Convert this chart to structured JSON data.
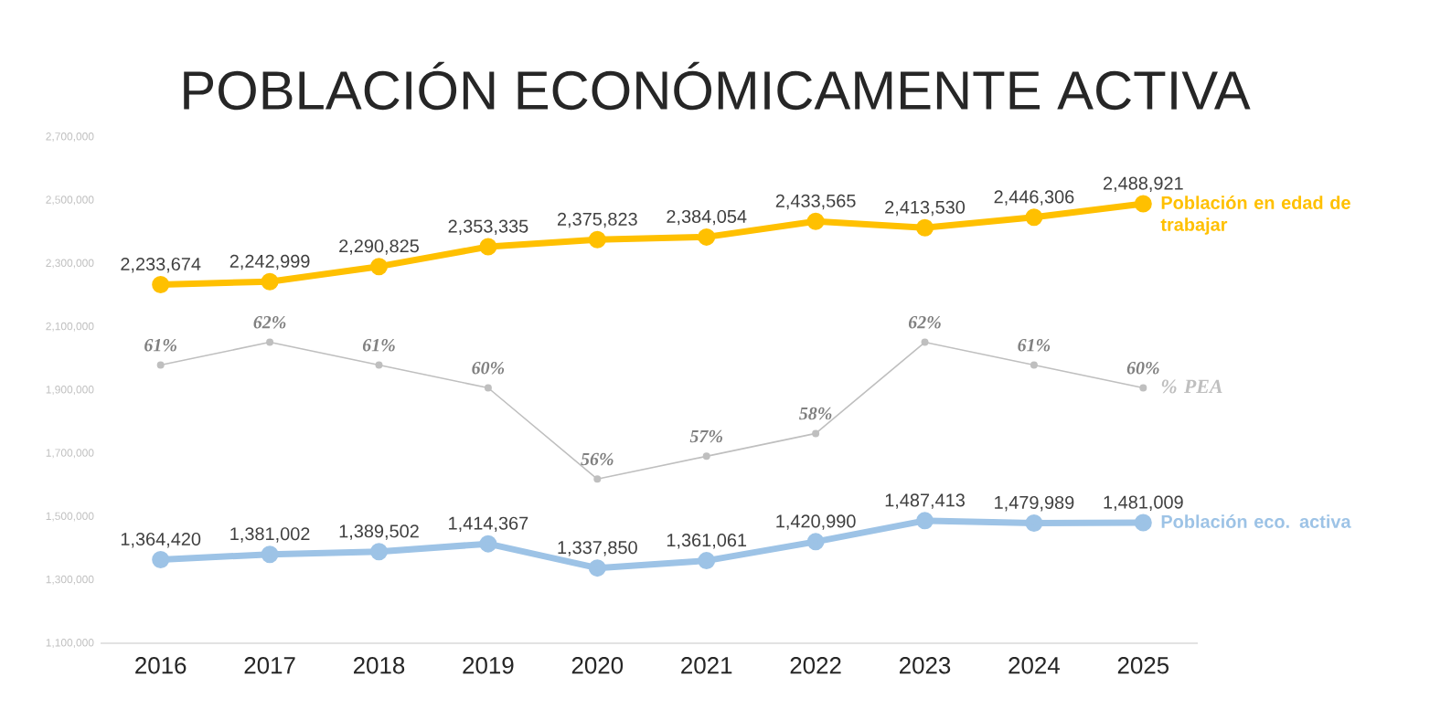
{
  "chart_data": {
    "type": "line",
    "title": "POBLACIÓN ECONÓMICAMENTE ACTIVA",
    "categories": [
      "2016",
      "2017",
      "2018",
      "2019",
      "2020",
      "2021",
      "2022",
      "2023",
      "2024",
      "2025"
    ],
    "ylim": [
      1100000,
      2700000
    ],
    "yticks": [
      {
        "value": 1100000,
        "label": "1,100,000"
      },
      {
        "value": 1300000,
        "label": "1,300,000"
      },
      {
        "value": 1500000,
        "label": "1,500,000"
      },
      {
        "value": 1700000,
        "label": "1,700,000"
      },
      {
        "value": 1900000,
        "label": "1,900,000"
      },
      {
        "value": 2100000,
        "label": "2,100,000"
      },
      {
        "value": 2300000,
        "label": "2,300,000"
      },
      {
        "value": 2500000,
        "label": "2,500,000"
      },
      {
        "value": 2700000,
        "label": "2,700,000"
      }
    ],
    "marker": "circle",
    "legend": false,
    "grid": false,
    "series": [
      {
        "name": "Población en edad de trabajar",
        "color": "#ffc000",
        "values": [
          2233674,
          2242999,
          2290825,
          2353335,
          2375823,
          2384054,
          2433565,
          2413530,
          2446306,
          2488921
        ],
        "value_labels": [
          "2,233,674",
          "2,242,999",
          "2,290,825",
          "2,353,335",
          "2,375,823",
          "2,384,054",
          "2,433,565",
          "2,413,530",
          "2,446,306",
          "2,488,921"
        ]
      },
      {
        "name": "% PEA",
        "color": "#bfbfbf",
        "axis": "y2",
        "values": [
          61,
          62,
          61,
          60,
          56,
          57,
          58,
          62,
          61,
          60
        ],
        "value_labels": [
          "61%",
          "62%",
          "61%",
          "60%",
          "56%",
          "57%",
          "58%",
          "62%",
          "61%",
          "60%"
        ]
      },
      {
        "name": "Población eco. activa",
        "color": "#9dc3e6",
        "values": [
          1364420,
          1381002,
          1389502,
          1414367,
          1337850,
          1361061,
          1420990,
          1487413,
          1479989,
          1481009
        ],
        "value_labels": [
          "1,364,420",
          "1,381,002",
          "1,389,502",
          "1,414,367",
          "1,337,850",
          "1,361,061",
          "1,420,990",
          "1,487,413",
          "1,479,989",
          "1,481,009"
        ]
      }
    ]
  }
}
